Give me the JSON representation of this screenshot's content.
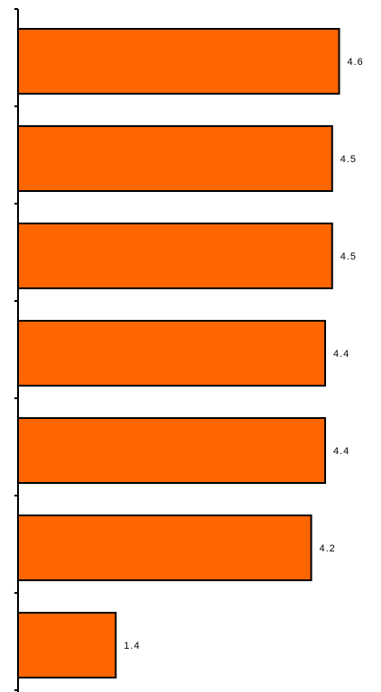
{
  "chart_data": {
    "type": "bar",
    "orientation": "horizontal",
    "categories": [
      "",
      "",
      "",
      "",
      "",
      "",
      ""
    ],
    "values": [
      4.6,
      4.5,
      4.5,
      4.4,
      4.4,
      4.2,
      1.4
    ],
    "data_labels": [
      "4.6",
      "4.5",
      "4.5",
      "4.4",
      "4.4",
      "4.2",
      "1.4"
    ],
    "title": "",
    "xlabel": "",
    "ylabel": "",
    "xlim": [
      0,
      5.25
    ],
    "grid": false,
    "legend": "none",
    "bar_color": "#ff6600",
    "bar_outline_color": "#000000"
  }
}
